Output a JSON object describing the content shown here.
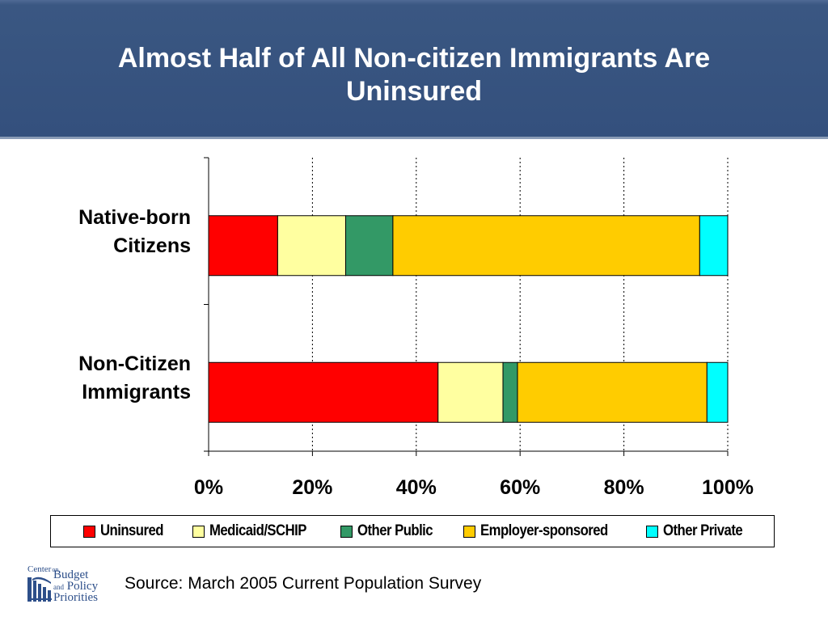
{
  "header": {
    "title_line1": "Almost Half of All Non-citizen Immigrants Are",
    "title_line2": "Uninsured"
  },
  "chart_data": {
    "type": "bar",
    "orientation": "horizontal",
    "stacked": true,
    "categories": [
      "Native-born Citizens",
      "Non-Citizen Immigrants"
    ],
    "category_lines": [
      [
        "Native-born",
        "Citizens"
      ],
      [
        "Non-Citizen",
        "Immigrants"
      ]
    ],
    "series": [
      {
        "name": "Uninsured",
        "color": "#ff0000",
        "values": [
          13.3,
          44.2
        ]
      },
      {
        "name": "Medicaid/SCHIP",
        "color": "#ffffa0",
        "values": [
          13.1,
          12.5
        ]
      },
      {
        "name": "Other Public",
        "color": "#339966",
        "values": [
          9.1,
          2.8
        ]
      },
      {
        "name": "Employer-sponsored",
        "color": "#ffcc00",
        "values": [
          59.1,
          36.5
        ]
      },
      {
        "name": "Other Private",
        "color": "#00ffff",
        "values": [
          5.4,
          4.0
        ]
      }
    ],
    "xlim": [
      0,
      100
    ],
    "xticks": [
      "0%",
      "20%",
      "40%",
      "60%",
      "80%",
      "100%"
    ],
    "grid": "vertical dotted",
    "legend_position": "bottom"
  },
  "footer": {
    "source": "Source: March 2005 Current Population Survey",
    "logo": {
      "line1": "Center",
      "line1_small": "on",
      "line2": "Budget",
      "line3": "and",
      "line3b": "Policy",
      "line4": "Priorities"
    }
  }
}
